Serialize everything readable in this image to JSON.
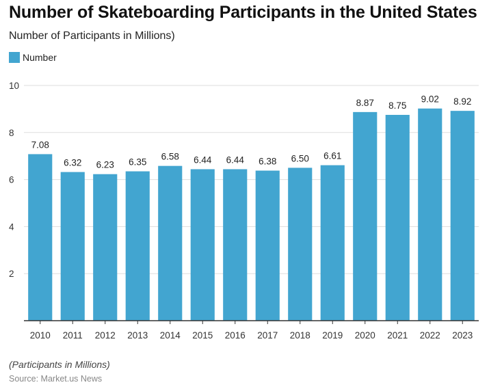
{
  "title": "Number of Skateboarding Participants in the United States",
  "subtitle": "Number of Participants in Millions)",
  "footnote": "(Participants in Millions)",
  "source": "Source: Market.us News",
  "colors": {
    "bar": "#42a5d0",
    "grid": "#dddddd",
    "axis": "#333333"
  },
  "chart_data": {
    "type": "bar",
    "categories": [
      "2010",
      "2011",
      "2012",
      "2013",
      "2014",
      "2015",
      "2016",
      "2017",
      "2018",
      "2019",
      "2020",
      "2021",
      "2022",
      "2023"
    ],
    "series": [
      {
        "name": "Number",
        "values": [
          7.08,
          6.32,
          6.23,
          6.35,
          6.58,
          6.44,
          6.44,
          6.38,
          6.5,
          6.61,
          8.87,
          8.75,
          9.02,
          8.92
        ]
      }
    ],
    "value_labels": [
      "7.08",
      "6.32",
      "6.23",
      "6.35",
      "6.58",
      "6.44",
      "6.44",
      "6.38",
      "6.50",
      "6.61",
      "8.87",
      "8.75",
      "9.02",
      "8.92"
    ],
    "y_ticks": [
      "2",
      "4",
      "6",
      "8",
      "10"
    ],
    "ylim": [
      0,
      10
    ],
    "grid": true,
    "legend": "top-left"
  }
}
